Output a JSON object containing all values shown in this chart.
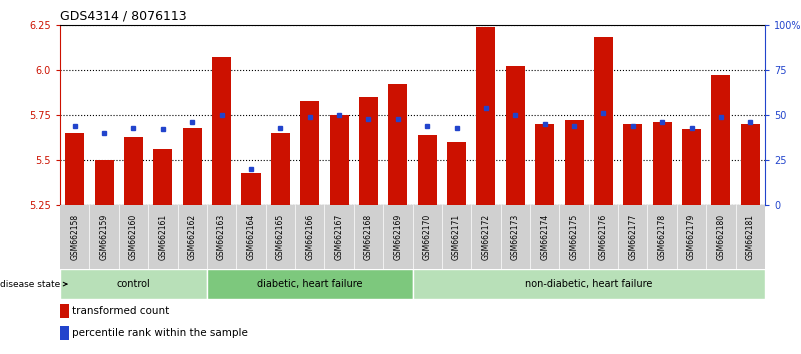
{
  "title": "GDS4314 / 8076113",
  "samples": [
    "GSM662158",
    "GSM662159",
    "GSM662160",
    "GSM662161",
    "GSM662162",
    "GSM662163",
    "GSM662164",
    "GSM662165",
    "GSM662166",
    "GSM662167",
    "GSM662168",
    "GSM662169",
    "GSM662170",
    "GSM662171",
    "GSM662172",
    "GSM662173",
    "GSM662174",
    "GSM662175",
    "GSM662176",
    "GSM662177",
    "GSM662178",
    "GSM662179",
    "GSM662180",
    "GSM662181"
  ],
  "red_values": [
    5.65,
    5.5,
    5.63,
    5.56,
    5.68,
    6.07,
    5.43,
    5.65,
    5.83,
    5.75,
    5.85,
    5.92,
    5.64,
    5.6,
    6.24,
    6.02,
    5.7,
    5.72,
    6.18,
    5.7,
    5.71,
    5.67,
    5.97,
    5.7
  ],
  "blue_values": [
    44,
    40,
    43,
    42,
    46,
    50,
    20,
    43,
    49,
    50,
    48,
    48,
    44,
    43,
    54,
    50,
    45,
    44,
    51,
    44,
    46,
    43,
    49,
    46
  ],
  "group_labels": [
    "control",
    "diabetic, heart failure",
    "non-diabetic, heart failure"
  ],
  "group_starts": [
    0,
    5,
    12
  ],
  "group_ends": [
    5,
    12,
    24
  ],
  "group_colors": [
    "#b8e0b8",
    "#7dc87d",
    "#b8e0b8"
  ],
  "ylim_left": [
    5.25,
    6.25
  ],
  "ylim_right": [
    0,
    100
  ],
  "yticks_left": [
    5.25,
    5.5,
    5.75,
    6.0,
    6.25
  ],
  "yticks_right": [
    0,
    25,
    50,
    75,
    100
  ],
  "ytick_labels_right": [
    "0",
    "25",
    "50",
    "75",
    "100%"
  ],
  "bar_color": "#cc1100",
  "dot_color": "#2244cc",
  "bar_width": 0.65,
  "title_fontsize": 9,
  "tick_fontsize": 7,
  "sample_fontsize": 5.5,
  "label_fontsize": 7.5,
  "grey_bg": "#d0d0d0"
}
